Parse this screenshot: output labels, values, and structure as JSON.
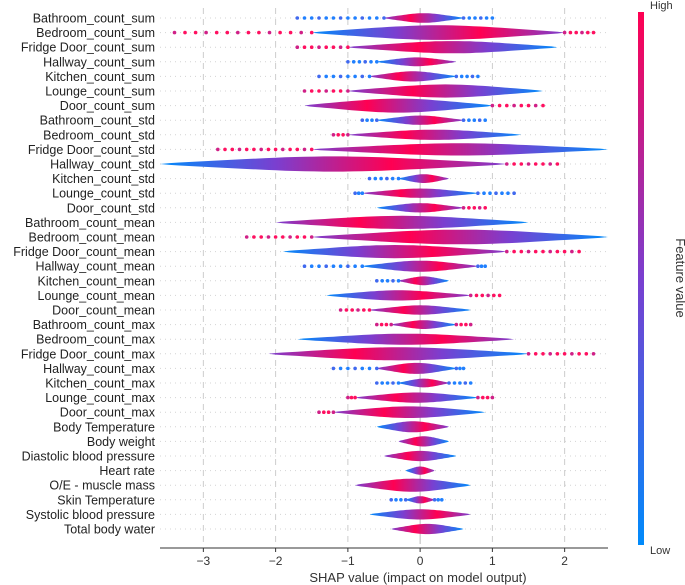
{
  "chart_data": {
    "type": "violin",
    "title": "",
    "xlabel": "SHAP value (impact on model output)",
    "ylabel": "",
    "xlim": [
      -3.6,
      2.6
    ],
    "xticks": [
      -3,
      -2,
      -1,
      0,
      1,
      2
    ],
    "colorbar": {
      "label": "Feature value",
      "high": "High",
      "low": "Low",
      "high_color": "#ff0052",
      "mid_color": "#7a3fd0",
      "low_color": "#008bfb"
    },
    "features": [
      {
        "name": "Bathroom_count_sum",
        "min": -1.7,
        "max": 1.0,
        "core": [
          -0.5,
          0.6
        ],
        "hw": 0.33,
        "dot_color": "#2080ff"
      },
      {
        "name": "Bedroom_count_sum",
        "min": -3.4,
        "max": 2.4,
        "core": [
          -1.5,
          2.0
        ],
        "hw": 0.5,
        "dot_color": "#ff1060"
      },
      {
        "name": "Fridge Door_count_sum",
        "min": -1.7,
        "max": 1.9,
        "core": [
          -1.0,
          1.9
        ],
        "hw": 0.42,
        "dot_color": "#ff1060"
      },
      {
        "name": "Hallway_count_sum",
        "min": -1.0,
        "max": 0.5,
        "core": [
          -0.6,
          0.5
        ],
        "hw": 0.3,
        "dot_color": "#2080ff"
      },
      {
        "name": "Kitchen_count_sum",
        "min": -1.4,
        "max": 0.8,
        "core": [
          -0.7,
          0.5
        ],
        "hw": 0.35,
        "dot_color": "#2080ff"
      },
      {
        "name": "Lounge_count_sum",
        "min": -1.6,
        "max": 1.7,
        "core": [
          -1.0,
          1.7
        ],
        "hw": 0.45,
        "dot_color": "#ff1060"
      },
      {
        "name": "Door_count_sum",
        "min": -1.6,
        "max": 1.7,
        "core": [
          -1.6,
          1.0
        ],
        "hw": 0.48,
        "dot_color": "#ff1060"
      },
      {
        "name": "Bathroom_count_std",
        "min": -0.8,
        "max": 0.9,
        "core": [
          -0.6,
          0.6
        ],
        "hw": 0.32,
        "dot_color": "#2080ff"
      },
      {
        "name": "Bedroom_count_std",
        "min": -1.2,
        "max": 1.4,
        "core": [
          -1.0,
          1.4
        ],
        "hw": 0.35,
        "dot_color": "#ff1060"
      },
      {
        "name": "Fridge Door_count_std",
        "min": -2.8,
        "max": 2.6,
        "core": [
          -1.5,
          2.6
        ],
        "hw": 0.42,
        "dot_color": "#ff1060"
      },
      {
        "name": "Hallway_count_std",
        "min": -3.6,
        "max": 1.9,
        "core": [
          -3.6,
          1.2
        ],
        "hw": 0.52,
        "dot_color": "#ff1060"
      },
      {
        "name": "Kitchen_count_std",
        "min": -0.7,
        "max": 0.4,
        "core": [
          -0.3,
          0.4
        ],
        "hw": 0.3,
        "dot_color": "#2080ff"
      },
      {
        "name": "Lounge_count_std",
        "min": -0.9,
        "max": 1.3,
        "core": [
          -0.8,
          0.8
        ],
        "hw": 0.32,
        "dot_color": "#2080ff"
      },
      {
        "name": "Door_count_std",
        "min": -0.6,
        "max": 0.9,
        "core": [
          -0.6,
          0.6
        ],
        "hw": 0.32,
        "dot_color": "#ff1060"
      },
      {
        "name": "Bathroom_count_mean",
        "min": -2.0,
        "max": 1.5,
        "core": [
          -2.0,
          1.5
        ],
        "hw": 0.45,
        "dot_color": "#ff1060"
      },
      {
        "name": "Bedroom_count_mean",
        "min": -2.4,
        "max": 2.6,
        "core": [
          -1.5,
          2.6
        ],
        "hw": 0.5,
        "dot_color": "#ff1060"
      },
      {
        "name": "Fridge Door_count_mean",
        "min": -1.9,
        "max": 2.2,
        "core": [
          -1.9,
          1.2
        ],
        "hw": 0.45,
        "dot_color": "#ff1060"
      },
      {
        "name": "Hallway_count_mean",
        "min": -1.6,
        "max": 0.9,
        "core": [
          -0.8,
          0.8
        ],
        "hw": 0.38,
        "dot_color": "#2080ff"
      },
      {
        "name": "Kitchen_count_mean",
        "min": -0.6,
        "max": 0.4,
        "core": [
          -0.3,
          0.4
        ],
        "hw": 0.3,
        "dot_color": "#2080ff"
      },
      {
        "name": "Lounge_count_mean",
        "min": -1.3,
        "max": 1.1,
        "core": [
          -1.3,
          0.7
        ],
        "hw": 0.35,
        "dot_color": "#ff1060"
      },
      {
        "name": "Door_count_mean",
        "min": -1.1,
        "max": 0.7,
        "core": [
          -0.7,
          0.7
        ],
        "hw": 0.32,
        "dot_color": "#ff1060"
      },
      {
        "name": "Bathroom_count_max",
        "min": -0.6,
        "max": 0.7,
        "core": [
          -0.4,
          0.5
        ],
        "hw": 0.3,
        "dot_color": "#ff1060"
      },
      {
        "name": "Bedroom_count_max",
        "min": -1.7,
        "max": 1.3,
        "core": [
          -1.7,
          1.3
        ],
        "hw": 0.38,
        "dot_color": "#ff1060"
      },
      {
        "name": "Fridge Door_count_max",
        "min": -2.1,
        "max": 2.4,
        "core": [
          -2.1,
          1.5
        ],
        "hw": 0.45,
        "dot_color": "#ff1060"
      },
      {
        "name": "Hallway_count_max",
        "min": -1.2,
        "max": 0.6,
        "core": [
          -0.6,
          0.5
        ],
        "hw": 0.38,
        "dot_color": "#2080ff"
      },
      {
        "name": "Kitchen_count_max",
        "min": -0.6,
        "max": 0.7,
        "core": [
          -0.3,
          0.4
        ],
        "hw": 0.3,
        "dot_color": "#2080ff"
      },
      {
        "name": "Lounge_count_max",
        "min": -1.0,
        "max": 1.0,
        "core": [
          -0.9,
          0.8
        ],
        "hw": 0.35,
        "dot_color": "#ff1060"
      },
      {
        "name": "Door_count_max",
        "min": -1.4,
        "max": 0.9,
        "core": [
          -1.2,
          0.9
        ],
        "hw": 0.4,
        "dot_color": "#ff1060"
      },
      {
        "name": "Body Temperature",
        "min": -0.6,
        "max": 0.4,
        "core": [
          -0.6,
          0.4
        ],
        "hw": 0.38,
        "dot_color": "#ff1060"
      },
      {
        "name": "Body weight",
        "min": -0.3,
        "max": 0.4,
        "core": [
          -0.3,
          0.4
        ],
        "hw": 0.35,
        "dot_color": "#ff1060"
      },
      {
        "name": "Diastolic blood pressure",
        "min": -0.5,
        "max": 0.5,
        "core": [
          -0.5,
          0.5
        ],
        "hw": 0.35,
        "dot_color": "#ff1060"
      },
      {
        "name": "Heart rate",
        "min": -0.2,
        "max": 0.2,
        "core": [
          -0.2,
          0.2
        ],
        "hw": 0.28,
        "dot_color": "#ff1060"
      },
      {
        "name": "O/E - muscle mass",
        "min": -0.9,
        "max": 0.7,
        "core": [
          -0.9,
          0.7
        ],
        "hw": 0.45,
        "dot_color": "#2080ff"
      },
      {
        "name": "Skin Temperature",
        "min": -0.4,
        "max": 0.3,
        "core": [
          -0.2,
          0.2
        ],
        "hw": 0.25,
        "dot_color": "#2080ff"
      },
      {
        "name": "Systolic blood pressure",
        "min": -0.7,
        "max": 0.7,
        "core": [
          -0.7,
          0.7
        ],
        "hw": 0.35,
        "dot_color": "#ff1060"
      },
      {
        "name": "Total body water",
        "min": -0.4,
        "max": 0.6,
        "core": [
          -0.4,
          0.6
        ],
        "hw": 0.35,
        "dot_color": "#ff1060"
      }
    ]
  }
}
